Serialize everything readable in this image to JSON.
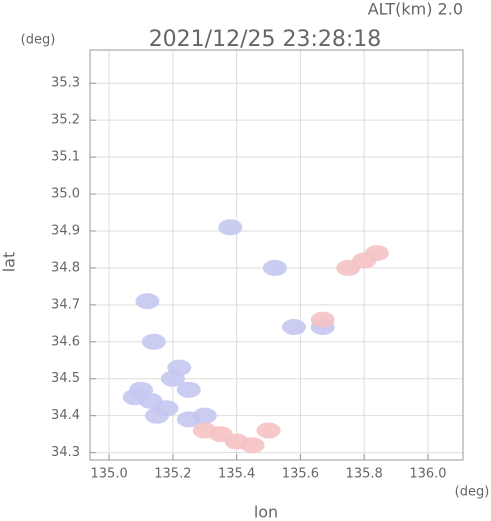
{
  "chart_data": {
    "type": "scatter",
    "title": "2021/12/25 23:28:18",
    "subtitle": "ALT(km) 2.0",
    "y_unit": "(deg)",
    "x_unit": "(deg)",
    "x_label": "lon",
    "y_label": "lat",
    "xlim": [
      134.94,
      136.11
    ],
    "ylim": [
      34.28,
      35.39
    ],
    "xticks": [
      {
        "value": 135.0,
        "label": "135.0"
      },
      135.2,
      135.4,
      135.6,
      135.8,
      {
        "value": 136.0,
        "label": "136.0"
      }
    ],
    "yticks": [
      34.3,
      34.4,
      34.5,
      34.6,
      34.7,
      34.8,
      34.9,
      {
        "value": 35.0,
        "label": "35.0"
      },
      35.1,
      35.2,
      35.3
    ],
    "grid": true,
    "series": [
      {
        "color": "#c4c6f0",
        "x": [
          135.13,
          135.18,
          135.1,
          135.2,
          135.15,
          135.25,
          135.3,
          135.14,
          135.25,
          135.12,
          135.38,
          135.52,
          135.67,
          135.58,
          135.22,
          135.08
        ],
        "values": [
          34.44,
          34.42,
          34.47,
          34.5,
          34.4,
          34.39,
          34.4,
          34.6,
          34.47,
          34.71,
          34.91,
          34.8,
          34.64,
          34.64,
          34.53,
          34.45
        ]
      },
      {
        "color": "#f5c2c4",
        "x": [
          135.4,
          135.45,
          135.35,
          135.8,
          135.84,
          135.75,
          135.67,
          135.5,
          135.3
        ],
        "values": [
          34.33,
          34.32,
          34.35,
          34.82,
          34.84,
          34.8,
          34.66,
          34.36,
          34.36
        ]
      }
    ]
  }
}
